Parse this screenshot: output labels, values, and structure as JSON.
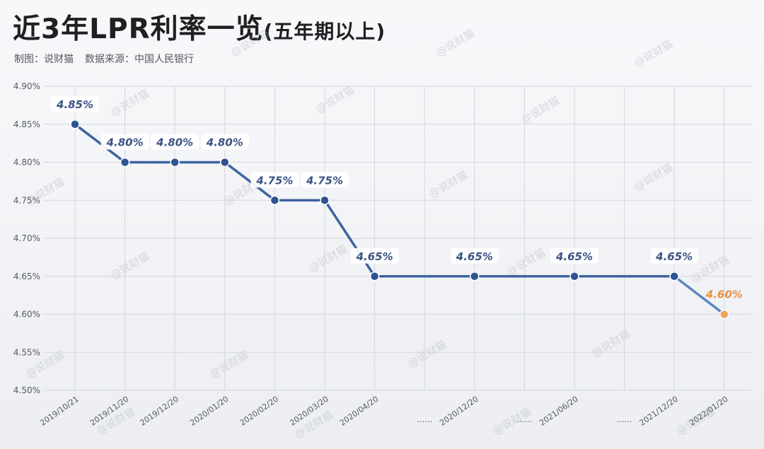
{
  "header": {
    "title_main": "近3年LPR利率一览",
    "title_sub": "(五年期以上)",
    "credit_maker": "制图：说财猫",
    "credit_source": "数据来源：中国人民银行"
  },
  "watermark": "@说财猫",
  "colors": {
    "line": "#3d64a0",
    "point": "#2f5391",
    "label": "#3b5383",
    "highlight": "#f5a158",
    "highlight_label": "#e8903f",
    "grid": "#d3d6db"
  },
  "chart_data": {
    "type": "line",
    "title": "近3年LPR利率一览(五年期以上)",
    "xlabel": "",
    "ylabel": "",
    "ylim": [
      4.5,
      4.9
    ],
    "y_ticks": [
      "4.50%",
      "4.55%",
      "4.60%",
      "4.65%",
      "4.70%",
      "4.75%",
      "4.80%",
      "4.85%",
      "4.90%"
    ],
    "grid": true,
    "categories": [
      "2019/10/21",
      "2019/11/20",
      "2019/12/20",
      "2020/01/20",
      "2020/02/20",
      "2020/03/20",
      "2020/04/20",
      "……",
      "2020/12/20",
      "……",
      "2021/06/20",
      "……",
      "2021/12/20",
      "2022/01/20"
    ],
    "points": [
      {
        "x": "2019/10/21",
        "y": 4.85,
        "label": "4.85%",
        "labeled": true
      },
      {
        "x": "2019/11/20",
        "y": 4.8,
        "label": "4.80%",
        "labeled": true
      },
      {
        "x": "2019/12/20",
        "y": 4.8,
        "label": "4.80%",
        "labeled": true
      },
      {
        "x": "2020/01/20",
        "y": 4.8,
        "label": "4.80%",
        "labeled": true
      },
      {
        "x": "2020/02/20",
        "y": 4.75,
        "label": "4.75%",
        "labeled": true
      },
      {
        "x": "2020/03/20",
        "y": 4.75,
        "label": "4.75%",
        "labeled": true
      },
      {
        "x": "2020/04/20",
        "y": 4.65,
        "label": "4.65%",
        "labeled": true
      },
      {
        "x": "2020/12/20",
        "y": 4.65,
        "label": "4.65%",
        "labeled": true
      },
      {
        "x": "2021/06/20",
        "y": 4.65,
        "label": "4.65%",
        "labeled": true
      },
      {
        "x": "2021/12/20",
        "y": 4.65,
        "label": "4.65%",
        "labeled": true
      },
      {
        "x": "2022/01/20",
        "y": 4.6,
        "label": "4.60%",
        "labeled": true,
        "highlight": true
      }
    ]
  }
}
